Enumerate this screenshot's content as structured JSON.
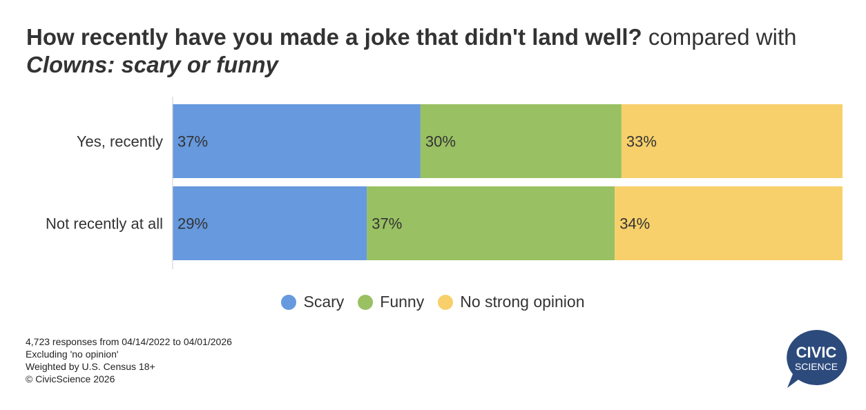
{
  "title": {
    "bold": "How recently have you made a joke that didn't land well?",
    "mid": " compared with ",
    "italic": "Clowns: scary or funny"
  },
  "chart_data": {
    "type": "bar",
    "orientation": "horizontal",
    "stacked": true,
    "xlim": [
      0,
      100
    ],
    "categories": [
      "Yes, recently",
      "Not recently at all"
    ],
    "series": [
      {
        "name": "Scary",
        "color": "#6699de",
        "values": [
          37,
          29
        ]
      },
      {
        "name": "Funny",
        "color": "#99c062",
        "values": [
          30,
          37
        ]
      },
      {
        "name": "No strong opinion",
        "color": "#f7d06b",
        "values": [
          33,
          34
        ]
      }
    ],
    "legend_position": "bottom"
  },
  "notes": [
    "4,723 responses from 04/14/2022 to 04/01/2026",
    "Excluding 'no opinion'",
    "Weighted by U.S. Census 18+",
    "© CivicScience 2026"
  ],
  "logo": {
    "line1": "CIVIC",
    "line2": "SCIENCE",
    "color": "#2c4a7c"
  }
}
